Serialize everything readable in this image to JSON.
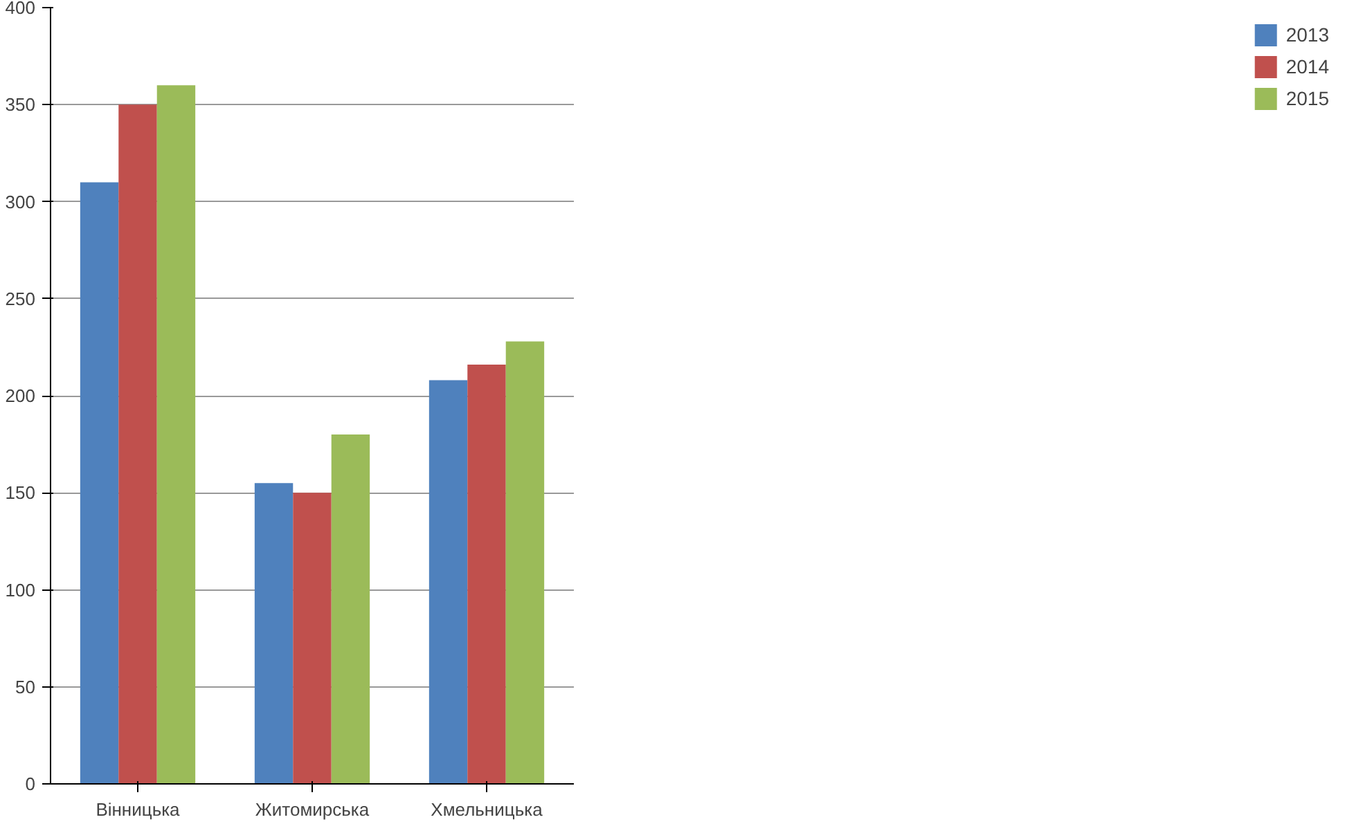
{
  "chart_data": {
    "type": "bar",
    "categories": [
      "Вінницька",
      "Житомирська",
      "Хмельницька"
    ],
    "series": [
      {
        "name": "2013",
        "color": "#4f81bd",
        "values": [
          310,
          155,
          208
        ]
      },
      {
        "name": "2014",
        "color": "#c0504d",
        "values": [
          350,
          150,
          216
        ]
      },
      {
        "name": "2015",
        "color": "#9bbb59",
        "values": [
          360,
          180,
          228
        ]
      }
    ],
    "ylim": [
      0,
      400
    ],
    "yticks": [
      0,
      50,
      100,
      150,
      200,
      250,
      300,
      350,
      400
    ],
    "grid": "y",
    "legend": "right"
  }
}
